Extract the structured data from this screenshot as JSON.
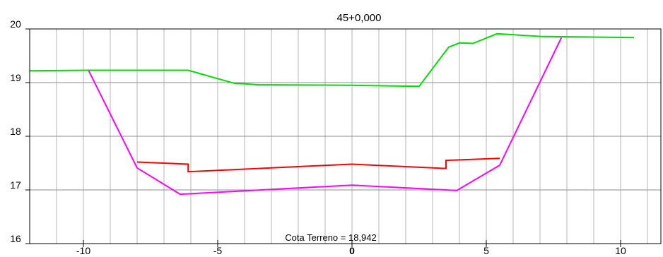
{
  "chart_data": {
    "type": "line",
    "title": "45+0,000",
    "xlabel": "",
    "ylabel": "",
    "xlim": [
      -12,
      11.5
    ],
    "ylim": [
      16,
      20
    ],
    "grid": true,
    "x_ticks": [
      -10,
      -5,
      0,
      5,
      10
    ],
    "x_tick_labels": [
      "-10",
      "-5",
      "0",
      "5",
      "10"
    ],
    "y_ticks": [
      16,
      17,
      18,
      19,
      20
    ],
    "y_tick_labels": [
      "16",
      "17",
      "18",
      "19",
      "20"
    ],
    "annotation": "Cota Terreno = 18,942",
    "series": [
      {
        "color": "#00dd00",
        "x": [
          -12,
          -9.7,
          -6.1,
          -4.4,
          -3.5,
          0,
          2.5,
          3.6,
          4.0,
          4.5,
          5.4,
          7.0,
          10.5
        ],
        "y": [
          19.22,
          19.23,
          19.23,
          18.99,
          18.96,
          18.95,
          18.93,
          19.66,
          19.74,
          19.73,
          19.91,
          19.86,
          19.84
        ]
      },
      {
        "color": "#ff00ff",
        "x": [
          -9.8,
          -8.0,
          -6.4,
          0,
          3.9,
          5.5,
          7.8
        ],
        "y": [
          19.22,
          17.41,
          16.92,
          17.09,
          16.99,
          17.46,
          19.84
        ]
      },
      {
        "color": "#ff0000",
        "x": [
          -8.0,
          -6.1,
          -6.1,
          0,
          3.5,
          3.5,
          5.5
        ],
        "y": [
          17.52,
          17.48,
          17.34,
          17.48,
          17.4,
          17.55,
          17.59
        ]
      }
    ]
  }
}
